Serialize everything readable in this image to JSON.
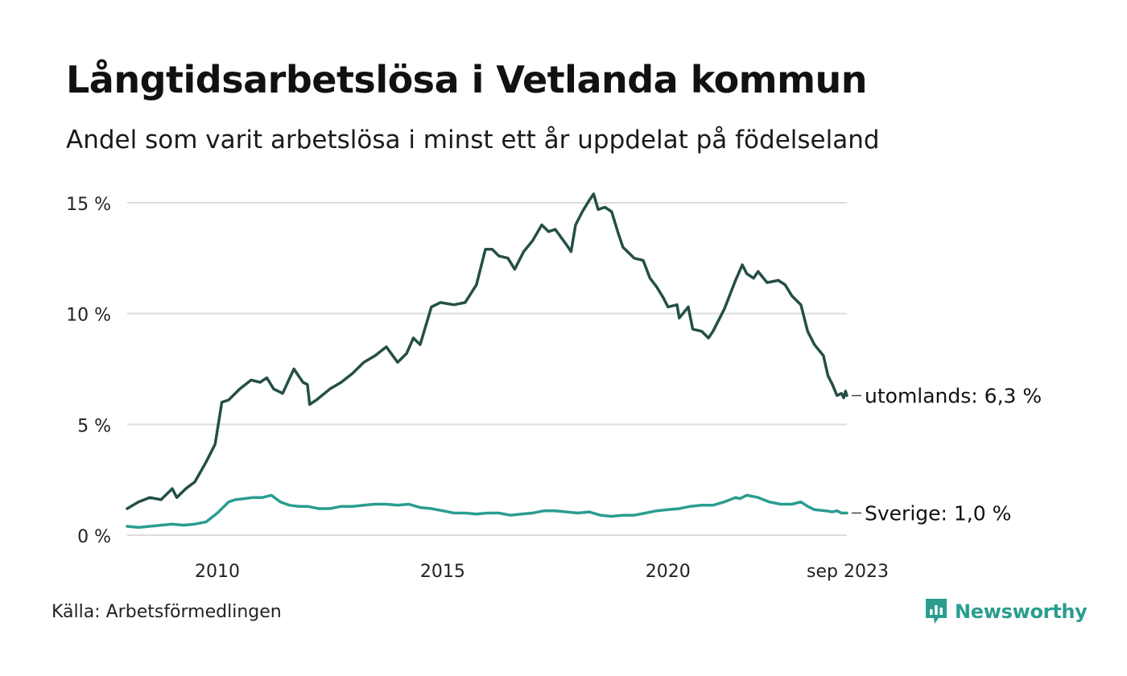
{
  "title": "Långtidsarbetslösa i Vetlanda kommun",
  "subtitle": "Andel som varit arbetslösa i minst ett år uppdelat på födelseland",
  "source": "Källa: Arbetsförmedlingen",
  "brand": "Newsworthy",
  "colors": {
    "utomlands": "#244f47",
    "sverige": "#2a9d8f",
    "grid": "#dddddd",
    "brand": "#2a9d8f"
  },
  "chart_data": {
    "type": "line",
    "title": "Långtidsarbetslösa i Vetlanda kommun",
    "xlabel": "",
    "ylabel": "",
    "ylim": [
      0,
      15.5
    ],
    "xlim": [
      2008.0,
      2023.67
    ],
    "y_ticks": [
      {
        "value": 0,
        "label": "0 %"
      },
      {
        "value": 5,
        "label": "5 %"
      },
      {
        "value": 10,
        "label": "10 %"
      },
      {
        "value": 15,
        "label": "15 %"
      }
    ],
    "x_ticks": [
      {
        "value": 2010,
        "label": "2010"
      },
      {
        "value": 2015,
        "label": "2015"
      },
      {
        "value": 2020,
        "label": "2020"
      },
      {
        "value": 2023.67,
        "label": "sep 2023"
      }
    ],
    "series": [
      {
        "name": "utomlands",
        "end_label": "utomlands: 6,3 %",
        "points": [
          [
            2008.0,
            1.2
          ],
          [
            2008.25,
            1.5
          ],
          [
            2008.5,
            1.7
          ],
          [
            2008.75,
            1.6
          ],
          [
            2009.0,
            2.1
          ],
          [
            2009.1,
            1.7
          ],
          [
            2009.3,
            2.1
          ],
          [
            2009.5,
            2.4
          ],
          [
            2009.75,
            3.3
          ],
          [
            2009.95,
            4.1
          ],
          [
            2010.1,
            6.0
          ],
          [
            2010.25,
            6.1
          ],
          [
            2010.5,
            6.6
          ],
          [
            2010.75,
            7.0
          ],
          [
            2010.95,
            6.9
          ],
          [
            2011.1,
            7.1
          ],
          [
            2011.25,
            6.6
          ],
          [
            2011.45,
            6.4
          ],
          [
            2011.7,
            7.5
          ],
          [
            2011.9,
            6.9
          ],
          [
            2012.0,
            6.8
          ],
          [
            2012.05,
            5.9
          ],
          [
            2012.2,
            6.1
          ],
          [
            2012.5,
            6.6
          ],
          [
            2012.75,
            6.9
          ],
          [
            2013.0,
            7.3
          ],
          [
            2013.25,
            7.8
          ],
          [
            2013.5,
            8.1
          ],
          [
            2013.75,
            8.5
          ],
          [
            2014.0,
            7.8
          ],
          [
            2014.2,
            8.2
          ],
          [
            2014.35,
            8.9
          ],
          [
            2014.5,
            8.6
          ],
          [
            2014.75,
            10.3
          ],
          [
            2014.95,
            10.5
          ],
          [
            2015.25,
            10.4
          ],
          [
            2015.5,
            10.5
          ],
          [
            2015.75,
            11.3
          ],
          [
            2015.95,
            12.9
          ],
          [
            2016.1,
            12.9
          ],
          [
            2016.25,
            12.6
          ],
          [
            2016.45,
            12.5
          ],
          [
            2016.6,
            12.0
          ],
          [
            2016.8,
            12.8
          ],
          [
            2017.0,
            13.3
          ],
          [
            2017.2,
            14.0
          ],
          [
            2017.35,
            13.7
          ],
          [
            2017.5,
            13.8
          ],
          [
            2017.75,
            13.1
          ],
          [
            2017.85,
            12.8
          ],
          [
            2017.95,
            14.0
          ],
          [
            2018.1,
            14.6
          ],
          [
            2018.25,
            15.1
          ],
          [
            2018.35,
            15.4
          ],
          [
            2018.45,
            14.7
          ],
          [
            2018.6,
            14.8
          ],
          [
            2018.75,
            14.6
          ],
          [
            2018.9,
            13.6
          ],
          [
            2019.0,
            13.0
          ],
          [
            2019.25,
            12.5
          ],
          [
            2019.45,
            12.4
          ],
          [
            2019.6,
            11.6
          ],
          [
            2019.75,
            11.2
          ],
          [
            2019.9,
            10.7
          ],
          [
            2020.0,
            10.3
          ],
          [
            2020.2,
            10.4
          ],
          [
            2020.25,
            9.8
          ],
          [
            2020.45,
            10.3
          ],
          [
            2020.55,
            9.3
          ],
          [
            2020.75,
            9.2
          ],
          [
            2020.9,
            8.9
          ],
          [
            2021.0,
            9.2
          ],
          [
            2021.25,
            10.2
          ],
          [
            2021.5,
            11.5
          ],
          [
            2021.65,
            12.2
          ],
          [
            2021.75,
            11.8
          ],
          [
            2021.9,
            11.6
          ],
          [
            2022.0,
            11.9
          ],
          [
            2022.2,
            11.4
          ],
          [
            2022.45,
            11.5
          ],
          [
            2022.6,
            11.3
          ],
          [
            2022.75,
            10.8
          ],
          [
            2022.95,
            10.4
          ],
          [
            2023.1,
            9.2
          ],
          [
            2023.25,
            8.6
          ],
          [
            2023.45,
            8.1
          ],
          [
            2023.55,
            7.2
          ],
          [
            2023.65,
            6.8
          ],
          [
            2023.75,
            6.3
          ],
          [
            2023.85,
            6.4
          ],
          [
            2023.9,
            6.2
          ],
          [
            2023.94,
            6.5
          ],
          [
            2023.97,
            6.3
          ]
        ]
      },
      {
        "name": "Sverige",
        "end_label": "Sverige: 1,0 %",
        "points": [
          [
            2008.0,
            0.4
          ],
          [
            2008.25,
            0.35
          ],
          [
            2008.5,
            0.4
          ],
          [
            2008.75,
            0.45
          ],
          [
            2009.0,
            0.5
          ],
          [
            2009.25,
            0.45
          ],
          [
            2009.5,
            0.5
          ],
          [
            2009.75,
            0.6
          ],
          [
            2010.0,
            1.0
          ],
          [
            2010.25,
            1.5
          ],
          [
            2010.4,
            1.6
          ],
          [
            2010.6,
            1.65
          ],
          [
            2010.8,
            1.7
          ],
          [
            2011.0,
            1.7
          ],
          [
            2011.2,
            1.8
          ],
          [
            2011.4,
            1.5
          ],
          [
            2011.6,
            1.35
          ],
          [
            2011.8,
            1.3
          ],
          [
            2012.0,
            1.3
          ],
          [
            2012.25,
            1.2
          ],
          [
            2012.5,
            1.2
          ],
          [
            2012.75,
            1.3
          ],
          [
            2013.0,
            1.3
          ],
          [
            2013.25,
            1.35
          ],
          [
            2013.5,
            1.4
          ],
          [
            2013.75,
            1.4
          ],
          [
            2014.0,
            1.35
          ],
          [
            2014.25,
            1.4
          ],
          [
            2014.5,
            1.25
          ],
          [
            2014.75,
            1.2
          ],
          [
            2015.0,
            1.1
          ],
          [
            2015.25,
            1.0
          ],
          [
            2015.5,
            1.0
          ],
          [
            2015.75,
            0.95
          ],
          [
            2016.0,
            1.0
          ],
          [
            2016.25,
            1.0
          ],
          [
            2016.5,
            0.9
          ],
          [
            2016.75,
            0.95
          ],
          [
            2017.0,
            1.0
          ],
          [
            2017.25,
            1.1
          ],
          [
            2017.5,
            1.1
          ],
          [
            2017.75,
            1.05
          ],
          [
            2018.0,
            1.0
          ],
          [
            2018.25,
            1.05
          ],
          [
            2018.5,
            0.9
          ],
          [
            2018.75,
            0.85
          ],
          [
            2019.0,
            0.9
          ],
          [
            2019.25,
            0.9
          ],
          [
            2019.5,
            1.0
          ],
          [
            2019.75,
            1.1
          ],
          [
            2020.0,
            1.15
          ],
          [
            2020.25,
            1.2
          ],
          [
            2020.5,
            1.3
          ],
          [
            2020.75,
            1.35
          ],
          [
            2021.0,
            1.35
          ],
          [
            2021.25,
            1.5
          ],
          [
            2021.5,
            1.7
          ],
          [
            2021.6,
            1.65
          ],
          [
            2021.75,
            1.8
          ],
          [
            2022.0,
            1.7
          ],
          [
            2022.25,
            1.5
          ],
          [
            2022.5,
            1.4
          ],
          [
            2022.75,
            1.4
          ],
          [
            2022.95,
            1.5
          ],
          [
            2023.1,
            1.3
          ],
          [
            2023.25,
            1.15
          ],
          [
            2023.5,
            1.1
          ],
          [
            2023.65,
            1.05
          ],
          [
            2023.75,
            1.1
          ],
          [
            2023.85,
            1.0
          ],
          [
            2023.97,
            1.0
          ]
        ]
      }
    ]
  }
}
